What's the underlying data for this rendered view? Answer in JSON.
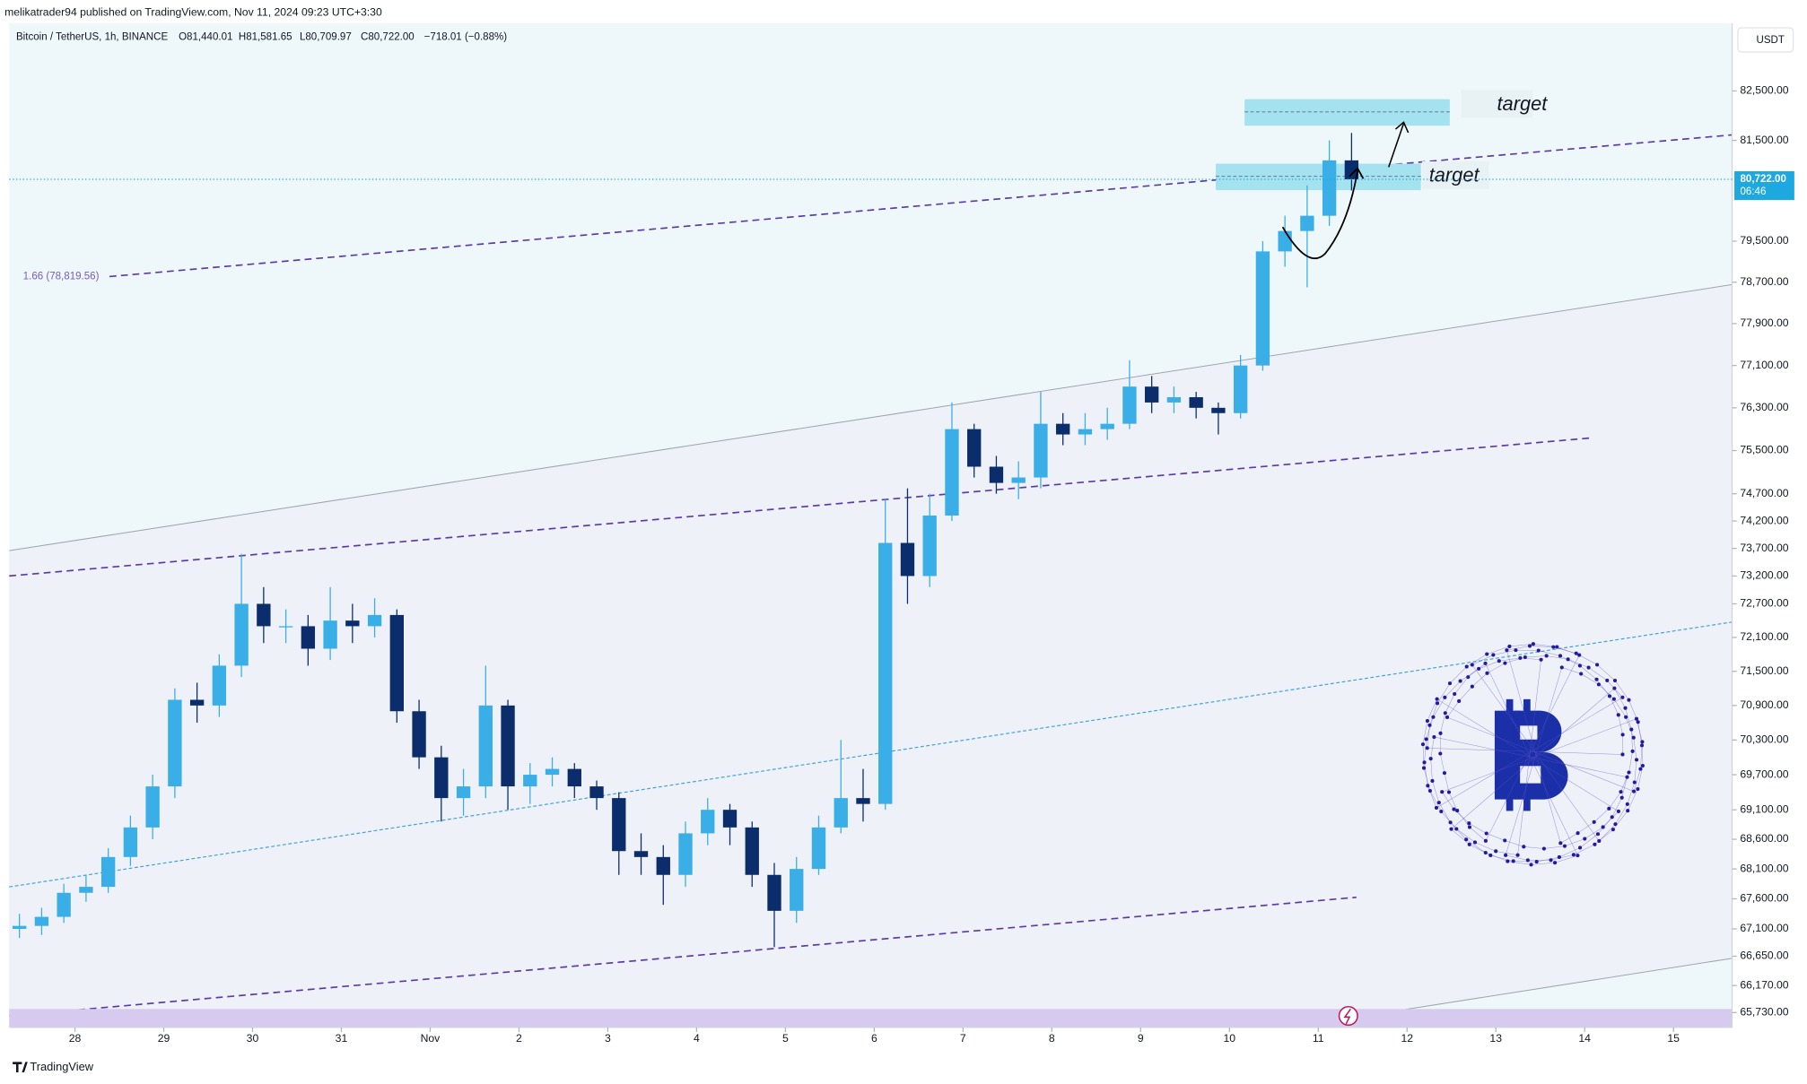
{
  "header": {
    "byline": "melikatrader94 published on TradingView.com, Nov 11, 2024 09:23 UTC+3:30",
    "currency": "USDT",
    "footer": "TradingView"
  },
  "chart_data": {
    "type": "candlestick",
    "title": "Bitcoin / TetherUS, 1h, BINANCE",
    "ohlc_labels": [
      "O81,440.01",
      "H81,581.65",
      "L80,709.97",
      "C80,722.00"
    ],
    "change_label": "−718.01 (−0.88%)",
    "up_color": "#3aaee6",
    "down_color": "#0c2d6b",
    "log_scale": true,
    "grid": false,
    "xlim": [
      27.26,
      46.66
    ],
    "ylim": [
      65490,
      83890
    ],
    "xticks": [
      28,
      29,
      30,
      31,
      {
        "value": 32,
        "label": "Nov"
      },
      {
        "value": 33,
        "label": "2"
      },
      {
        "value": 34,
        "label": "3"
      },
      {
        "value": 35,
        "label": "4"
      },
      {
        "value": 36,
        "label": "5"
      },
      {
        "value": 37,
        "label": "6"
      },
      {
        "value": 38,
        "label": "7"
      },
      {
        "value": 39,
        "label": "8"
      },
      {
        "value": 40,
        "label": "9"
      },
      {
        "value": 41,
        "label": "10"
      },
      {
        "value": 42,
        "label": "11"
      },
      {
        "value": 43,
        "label": "12"
      },
      {
        "value": 44,
        "label": "13"
      },
      {
        "value": 45,
        "label": "14"
      },
      {
        "value": 46,
        "label": "15"
      }
    ],
    "yticks": [
      {
        "value": 82500,
        "label": "82,500.00"
      },
      {
        "value": 81500,
        "label": "81,500.00"
      },
      {
        "value": 79500,
        "label": "79,500.00"
      },
      {
        "value": 78700,
        "label": "78,700.00"
      },
      {
        "value": 77900,
        "label": "77,900.00"
      },
      {
        "value": 77100,
        "label": "77,100.00"
      },
      {
        "value": 76300,
        "label": "76,300.00"
      },
      {
        "value": 75500,
        "label": "75,500.00"
      },
      {
        "value": 74700,
        "label": "74,700.00"
      },
      {
        "value": 74200,
        "label": "74,200.00"
      },
      {
        "value": 73700,
        "label": "73,700.00"
      },
      {
        "value": 73200,
        "label": "73,200.00"
      },
      {
        "value": 72700,
        "label": "72,700.00"
      },
      {
        "value": 72100,
        "label": "72,100.00"
      },
      {
        "value": 71500,
        "label": "71,500.00"
      },
      {
        "value": 70900,
        "label": "70,900.00"
      },
      {
        "value": 70300,
        "label": "70,300.00"
      },
      {
        "value": 69700,
        "label": "69,700.00"
      },
      {
        "value": 69100,
        "label": "69,100.00"
      },
      {
        "value": 68600,
        "label": "68,600.00"
      },
      {
        "value": 68100,
        "label": "68,100.00"
      },
      {
        "value": 67600,
        "label": "67,600.00"
      },
      {
        "value": 67100,
        "label": "67,100.00"
      },
      {
        "value": 66650,
        "label": "66,650.00"
      },
      {
        "value": 66170,
        "label": "66,170.00"
      },
      {
        "value": 65730,
        "label": "65,730.00"
      }
    ],
    "last_price": {
      "value": 80722,
      "label": "80,722.00",
      "countdown": "06:46"
    },
    "annotations": [
      "target",
      "target",
      "1.66 (78,819.56)"
    ],
    "x": [
      27.25,
      27.5,
      27.75,
      28.0,
      28.25,
      28.5,
      28.75,
      29.0,
      29.25,
      29.5,
      29.75,
      30.0,
      30.25,
      30.5,
      30.75,
      31.0,
      31.25,
      31.5,
      31.75,
      32.0,
      32.25,
      32.5,
      32.75,
      33.0,
      33.25,
      33.5,
      33.75,
      34.0,
      34.25,
      34.5,
      34.75,
      35.0,
      35.25,
      35.5,
      35.75,
      36.0,
      36.25,
      36.5,
      36.75,
      37.0,
      37.25,
      37.5,
      37.75,
      38.0,
      38.25,
      38.5,
      38.75,
      39.0,
      39.25,
      39.5,
      39.75,
      40.0,
      40.25,
      40.5,
      40.75,
      41.0,
      41.25,
      41.5,
      41.75,
      42.0,
      42.25
    ],
    "open": [
      67100,
      67150,
      67300,
      67700,
      67800,
      68300,
      68800,
      69500,
      71000,
      70900,
      71600,
      72700,
      72300,
      72300,
      71900,
      72400,
      72300,
      72500,
      70800,
      70000,
      69300,
      69500,
      70900,
      69500,
      69700,
      69800,
      69500,
      69300,
      68400,
      68300,
      68000,
      68700,
      69100,
      68800,
      68000,
      67400,
      68100,
      68800,
      69300,
      69200,
      73800,
      73200,
      74300,
      75900,
      75200,
      74900,
      75000,
      76000,
      75800,
      75900,
      76000,
      76700,
      76400,
      76500,
      76300,
      76200,
      77100,
      79300,
      79700,
      80000,
      81100
    ],
    "high": [
      67350,
      67450,
      67850,
      68000,
      68450,
      69000,
      69700,
      71200,
      71300,
      71800,
      73600,
      73000,
      72600,
      72500,
      73000,
      72700,
      72800,
      72600,
      71000,
      70200,
      69800,
      71600,
      71000,
      69900,
      70000,
      69900,
      69600,
      69400,
      68700,
      68500,
      68900,
      69300,
      69200,
      68900,
      68200,
      68300,
      69000,
      70300,
      69800,
      74600,
      74800,
      74700,
      76400,
      76000,
      75400,
      75300,
      76600,
      76200,
      76200,
      76300,
      77200,
      76900,
      76700,
      76600,
      76400,
      77300,
      79500,
      80000,
      80600,
      81500,
      81650
    ],
    "low": [
      66950,
      67000,
      67200,
      67550,
      67700,
      68150,
      68600,
      69300,
      70600,
      70700,
      71400,
      72000,
      72000,
      71600,
      71700,
      72000,
      72100,
      70600,
      69800,
      68900,
      69000,
      69300,
      69100,
      69200,
      69500,
      69300,
      69100,
      68000,
      68000,
      67500,
      67800,
      68500,
      68500,
      67800,
      66800,
      67200,
      68000,
      68700,
      68900,
      69100,
      72700,
      73000,
      74200,
      75000,
      74700,
      74600,
      74800,
      75600,
      75600,
      75700,
      75900,
      76200,
      76200,
      76100,
      75800,
      76100,
      77000,
      79000,
      78600,
      79800,
      80500
    ],
    "close": [
      67150,
      67300,
      67700,
      67800,
      68300,
      68800,
      69500,
      71000,
      70900,
      71600,
      72700,
      72300,
      72300,
      71900,
      72400,
      72300,
      72500,
      70800,
      70000,
      69300,
      69500,
      70900,
      69500,
      69700,
      69800,
      69500,
      69300,
      68400,
      68300,
      68000,
      68700,
      69100,
      68800,
      68000,
      67400,
      68100,
      68800,
      69300,
      69200,
      73800,
      73200,
      74300,
      75900,
      75200,
      74900,
      75000,
      76000,
      75800,
      75900,
      76000,
      76700,
      76400,
      76500,
      76300,
      76200,
      77100,
      79300,
      79700,
      80000,
      81100,
      80722
    ]
  }
}
